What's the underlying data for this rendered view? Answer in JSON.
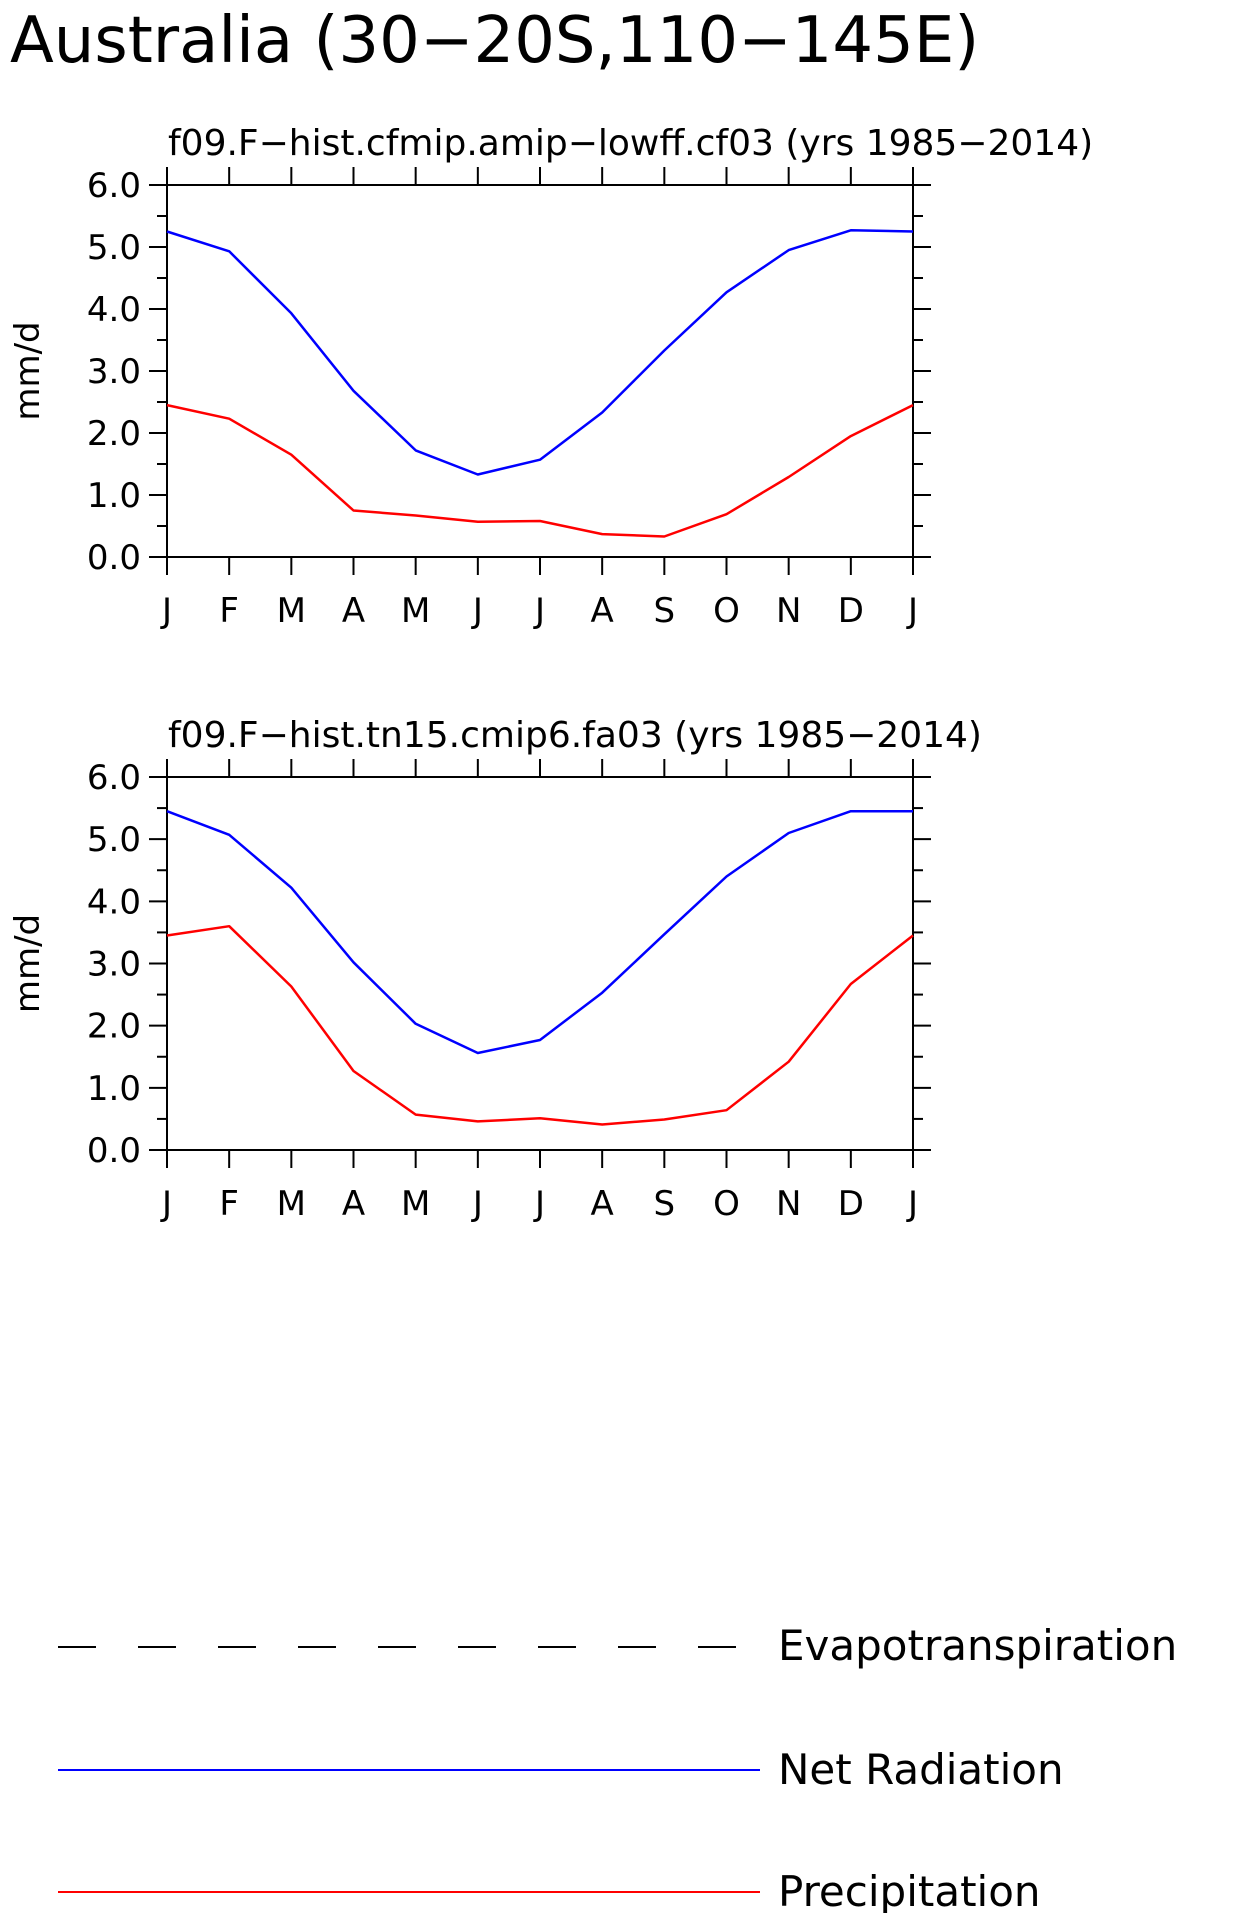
{
  "figure": {
    "title": "Australia (30−20S,110−145E)"
  },
  "legend": {
    "items": [
      {
        "label": "Evapotranspiration",
        "color": "#000000",
        "style": "dashed"
      },
      {
        "label": "Net Radiation",
        "color": "#0000ff",
        "style": "solid"
      },
      {
        "label": "Precipitation",
        "color": "#ff0000",
        "style": "solid"
      }
    ]
  },
  "chart_data": [
    {
      "type": "line",
      "title": "f09.F−hist.cfmip.amip−lowff.cf03 (yrs 1985−2014)",
      "xlabel": "",
      "ylabel": "mm/d",
      "categories": [
        "J",
        "F",
        "M",
        "A",
        "M",
        "J",
        "J",
        "A",
        "S",
        "O",
        "N",
        "D",
        "J"
      ],
      "ylim": [
        0,
        6
      ],
      "yticks": [
        "0.0",
        "1.0",
        "2.0",
        "3.0",
        "4.0",
        "5.0",
        "6.0"
      ],
      "grid": false,
      "series": [
        {
          "name": "Net Radiation",
          "color": "#0000ff",
          "values": [
            5.25,
            4.93,
            3.93,
            2.68,
            1.72,
            1.33,
            1.57,
            2.33,
            3.33,
            4.27,
            4.95,
            5.27,
            5.25
          ]
        },
        {
          "name": "Precipitation",
          "color": "#ff0000",
          "values": [
            2.45,
            2.23,
            1.65,
            0.75,
            0.67,
            0.57,
            0.58,
            0.37,
            0.33,
            0.69,
            1.29,
            1.95,
            2.45
          ]
        }
      ]
    },
    {
      "type": "line",
      "title": "f09.F−hist.tn15.cmip6.fa03 (yrs 1985−2014)",
      "xlabel": "",
      "ylabel": "mm/d",
      "categories": [
        "J",
        "F",
        "M",
        "A",
        "M",
        "J",
        "J",
        "A",
        "S",
        "O",
        "N",
        "D",
        "J"
      ],
      "ylim": [
        0,
        6
      ],
      "yticks": [
        "0.0",
        "1.0",
        "2.0",
        "3.0",
        "4.0",
        "5.0",
        "6.0"
      ],
      "grid": false,
      "series": [
        {
          "name": "Net Radiation",
          "color": "#0000ff",
          "values": [
            5.45,
            5.07,
            4.22,
            3.02,
            2.03,
            1.56,
            1.77,
            2.53,
            3.47,
            4.4,
            5.1,
            5.45,
            5.45
          ]
        },
        {
          "name": "Precipitation",
          "color": "#ff0000",
          "values": [
            3.45,
            3.6,
            2.63,
            1.27,
            0.57,
            0.46,
            0.51,
            0.41,
            0.49,
            0.64,
            1.42,
            2.67,
            3.45
          ]
        }
      ]
    }
  ]
}
